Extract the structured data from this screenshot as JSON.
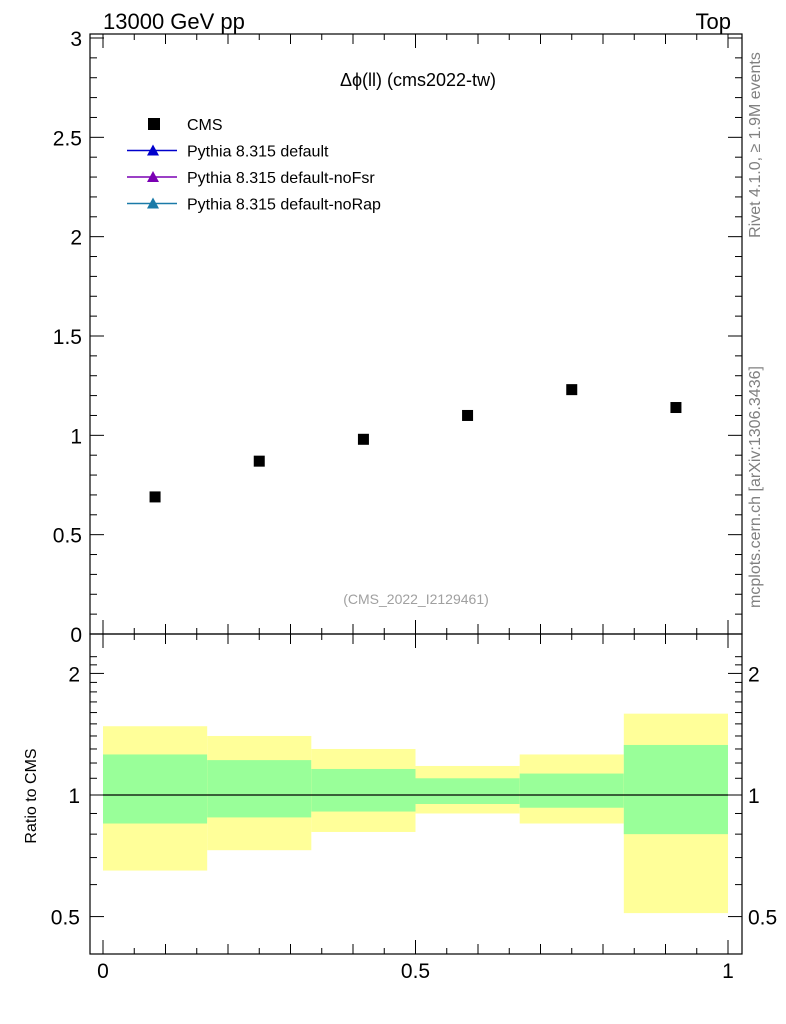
{
  "header": {
    "left": "13000 GeV pp",
    "right": "Top"
  },
  "side_labels": {
    "rivet": "Rivet 4.1.0, ≥ 1.9M events",
    "mcplots": "mcplots.cern.ch [arXiv:1306.3436]"
  },
  "watermark": "(CMS_2022_I2129461)",
  "colors": {
    "data": "#000000",
    "pythia_default": "#0000cc",
    "pythia_nofsr": "#7a00b3",
    "pythia_norap": "#1a7aa8",
    "band_inner": "#99ff99",
    "band_outer": "#ffff99"
  },
  "chart_data": [
    {
      "type": "scatter",
      "title": "Δϕ(ll) (cms2022-tw)",
      "xlabel": "",
      "ylabel": "",
      "xlim": [
        0,
        1
      ],
      "ylim": [
        0,
        3
      ],
      "yticks": [
        "0",
        "0.5",
        "1",
        "1.5",
        "2",
        "2.5",
        "3"
      ],
      "legend_position": "top-left",
      "legend": [
        {
          "label": "CMS",
          "marker": "square",
          "color": "#000000"
        },
        {
          "label": "Pythia 8.315 default",
          "marker": "triangle",
          "color": "#0000cc"
        },
        {
          "label": "Pythia 8.315 default-noFsr",
          "marker": "triangle",
          "color": "#7a00b3"
        },
        {
          "label": "Pythia 8.315 default-noRap",
          "marker": "triangle",
          "color": "#1a7aa8"
        }
      ],
      "series": [
        {
          "name": "CMS",
          "x": [
            0.0833,
            0.25,
            0.4167,
            0.5833,
            0.75,
            0.9167
          ],
          "y": [
            0.69,
            0.87,
            0.98,
            1.1,
            1.23,
            1.14
          ]
        }
      ]
    },
    {
      "type": "area",
      "title": "",
      "xlabel": "",
      "ylabel": "Ratio to CMS",
      "xlim": [
        0,
        1
      ],
      "ylim": [
        0.4,
        2.3
      ],
      "yticks": [
        "0.5",
        "1",
        "2"
      ],
      "xticks": [
        "0",
        "0.5",
        "1"
      ],
      "reference_line": 1,
      "bin_edges": [
        0,
        0.1667,
        0.3333,
        0.5,
        0.6667,
        0.8333,
        1
      ],
      "inner_band_low": [
        0.85,
        0.88,
        0.91,
        0.95,
        0.93,
        0.8
      ],
      "inner_band_high": [
        1.26,
        1.22,
        1.16,
        1.1,
        1.13,
        1.33
      ],
      "outer_band_low": [
        0.65,
        0.73,
        0.81,
        0.9,
        0.85,
        0.51
      ],
      "outer_band_high": [
        1.48,
        1.4,
        1.3,
        1.18,
        1.26,
        1.59
      ]
    }
  ]
}
